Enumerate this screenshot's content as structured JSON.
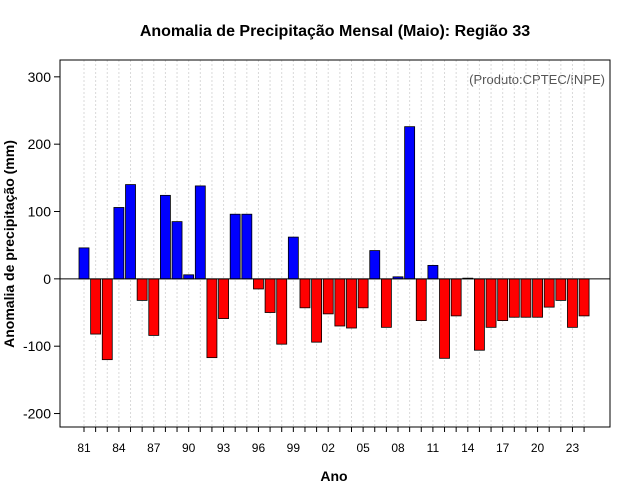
{
  "chart_data": {
    "type": "bar",
    "title": "Anomalia de Precipitação Mensal (Maio): Região 33",
    "xlabel": "Ano",
    "ylabel": "Anomalia de precipitação (mm)",
    "credit": "(Produto:CPTEC/INPE)",
    "ylim": [
      -220,
      325
    ],
    "yticks": [
      -200,
      -100,
      0,
      100,
      200,
      300
    ],
    "grid_x": true,
    "positive_color": "#0000ff",
    "negative_color": "#ff0000",
    "years": [
      1981,
      1982,
      1983,
      1984,
      1985,
      1986,
      1987,
      1988,
      1989,
      1990,
      1991,
      1992,
      1993,
      1994,
      1995,
      1996,
      1997,
      1998,
      1999,
      2000,
      2001,
      2002,
      2003,
      2004,
      2005,
      2006,
      2007,
      2008,
      2009,
      2010,
      2011,
      2012,
      2013,
      2014,
      2015,
      2016,
      2017,
      2018,
      2019,
      2020,
      2021,
      2022,
      2023,
      2024
    ],
    "values": [
      46,
      -82,
      -120,
      106,
      140,
      -32,
      -84,
      124,
      85,
      6,
      138,
      -117,
      -59,
      96,
      96,
      -15,
      -50,
      -97,
      62,
      -43,
      -94,
      -52,
      -70,
      -73,
      -43,
      42,
      -72,
      3,
      226,
      -62,
      20,
      -118,
      -55,
      1,
      -106,
      -72,
      -62,
      -57,
      -57,
      -57,
      -42,
      -32,
      -72,
      -55
    ],
    "xtick_years": [
      1981,
      1984,
      1987,
      1990,
      1993,
      1996,
      1999,
      2002,
      2005,
      2008,
      2011,
      2014,
      2017,
      2020,
      2023
    ],
    "xtick_labels": [
      "81",
      "84",
      "87",
      "90",
      "93",
      "96",
      "99",
      "02",
      "05",
      "08",
      "11",
      "14",
      "17",
      "20",
      "23"
    ]
  }
}
